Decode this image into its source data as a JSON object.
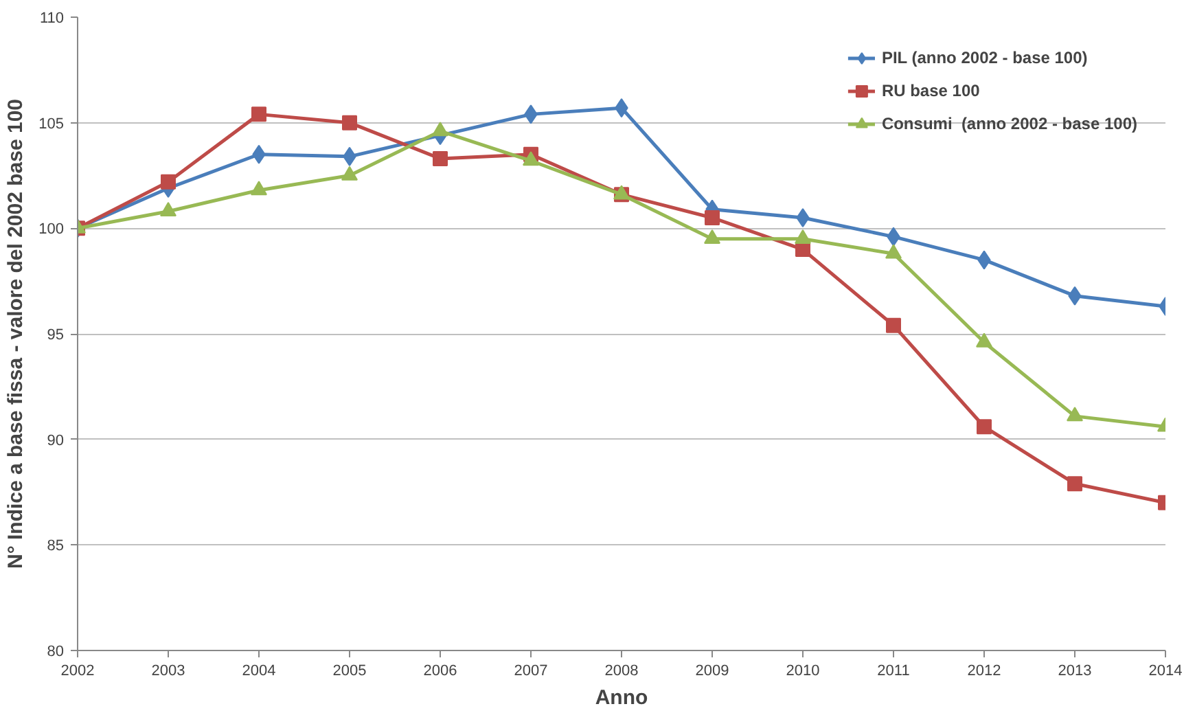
{
  "chart_data": {
    "type": "line",
    "xlabel": "Anno",
    "ylabel": "N° Indice a base fissa - valore del 2002 base 100",
    "x": [
      2002,
      2003,
      2004,
      2005,
      2006,
      2007,
      2008,
      2009,
      2010,
      2011,
      2012,
      2013,
      2014
    ],
    "series": [
      {
        "name": "PIL (anno 2002 - base 100)",
        "color": "#4a7ebb",
        "marker": "diamond",
        "values": [
          100,
          101.9,
          103.5,
          103.4,
          104.4,
          105.4,
          105.7,
          100.9,
          100.5,
          99.6,
          98.5,
          96.8,
          96.3
        ]
      },
      {
        "name": "RU base 100",
        "color": "#be4b48",
        "marker": "square",
        "values": [
          100,
          102.2,
          105.4,
          105.0,
          103.3,
          103.5,
          101.6,
          100.5,
          99.0,
          95.4,
          90.6,
          87.9,
          87.0
        ]
      },
      {
        "name": "Consumi  (anno 2002 - base 100)",
        "color": "#98b954",
        "marker": "triangle",
        "values": [
          100,
          100.8,
          101.8,
          102.5,
          104.6,
          103.2,
          101.6,
          99.5,
          99.5,
          98.8,
          94.6,
          91.1,
          90.6
        ]
      }
    ],
    "xlim": [
      2002,
      2014
    ],
    "xticks": [
      2002,
      2003,
      2004,
      2005,
      2006,
      2007,
      2008,
      2009,
      2010,
      2011,
      2012,
      2013,
      2014
    ],
    "ylim": [
      80,
      110
    ],
    "yticks": [
      80,
      85,
      90,
      95,
      100,
      105,
      110
    ],
    "grid": "y",
    "legend": "top right",
    "line_style": "solid"
  }
}
